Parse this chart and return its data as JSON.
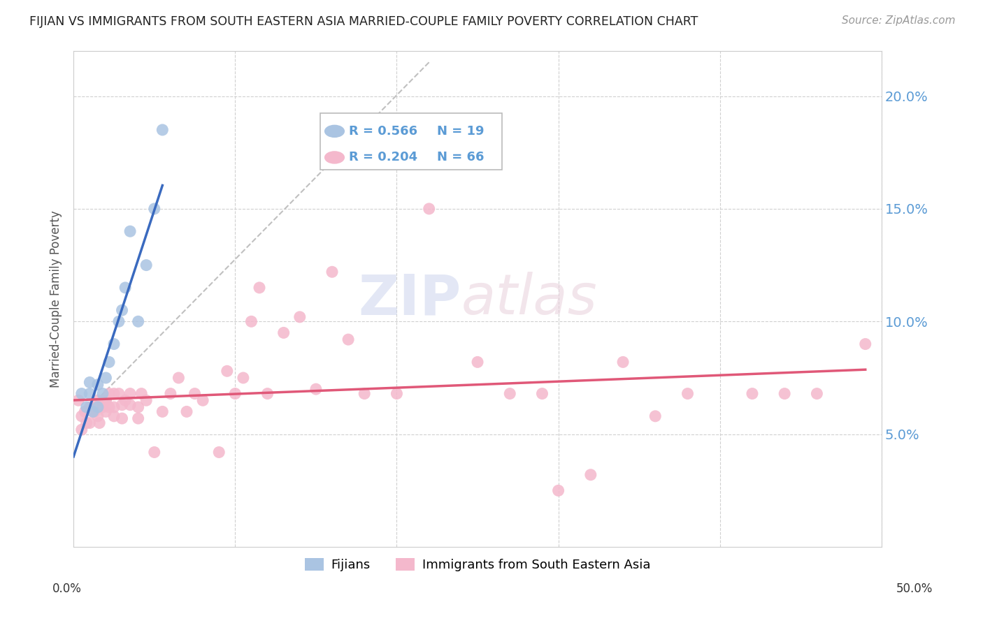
{
  "title": "FIJIAN VS IMMIGRANTS FROM SOUTH EASTERN ASIA MARRIED-COUPLE FAMILY POVERTY CORRELATION CHART",
  "source": "Source: ZipAtlas.com",
  "ylabel": "Married-Couple Family Poverty",
  "yticks": [
    0.0,
    0.05,
    0.1,
    0.15,
    0.2
  ],
  "ytick_labels": [
    "",
    "5.0%",
    "10.0%",
    "15.0%",
    "20.0%"
  ],
  "xlim": [
    0.0,
    0.5
  ],
  "ylim": [
    0.0,
    0.22
  ],
  "fijian_r": 0.566,
  "fijian_n": 19,
  "sea_r": 0.204,
  "sea_n": 66,
  "fijian_color": "#aac4e2",
  "sea_color": "#f4b8cc",
  "fijian_line_color": "#3a6abf",
  "sea_line_color": "#e05878",
  "diagonal_color": "#c0c0c0",
  "legend_label_fijian": "Fijians",
  "legend_label_sea": "Immigrants from South Eastern Asia",
  "legend_r_color": "#5b9bd5",
  "right_axis_color": "#5b9bd5",
  "fijian_points_x": [
    0.005,
    0.008,
    0.01,
    0.01,
    0.012,
    0.015,
    0.015,
    0.018,
    0.02,
    0.022,
    0.025,
    0.028,
    0.03,
    0.032,
    0.035,
    0.04,
    0.045,
    0.05,
    0.055
  ],
  "fijian_points_y": [
    0.068,
    0.062,
    0.068,
    0.073,
    0.06,
    0.062,
    0.072,
    0.068,
    0.075,
    0.082,
    0.09,
    0.1,
    0.105,
    0.115,
    0.14,
    0.1,
    0.125,
    0.15,
    0.185
  ],
  "sea_points_x": [
    0.003,
    0.005,
    0.005,
    0.007,
    0.008,
    0.01,
    0.01,
    0.012,
    0.013,
    0.015,
    0.015,
    0.016,
    0.018,
    0.018,
    0.02,
    0.02,
    0.02,
    0.022,
    0.022,
    0.025,
    0.025,
    0.025,
    0.028,
    0.03,
    0.03,
    0.032,
    0.035,
    0.035,
    0.04,
    0.04,
    0.042,
    0.045,
    0.05,
    0.055,
    0.06,
    0.065,
    0.07,
    0.075,
    0.08,
    0.09,
    0.095,
    0.1,
    0.105,
    0.11,
    0.115,
    0.12,
    0.13,
    0.14,
    0.15,
    0.16,
    0.17,
    0.18,
    0.2,
    0.22,
    0.25,
    0.27,
    0.29,
    0.3,
    0.32,
    0.34,
    0.36,
    0.38,
    0.42,
    0.44,
    0.46,
    0.49
  ],
  "sea_points_y": [
    0.065,
    0.058,
    0.052,
    0.06,
    0.055,
    0.055,
    0.062,
    0.06,
    0.06,
    0.058,
    0.065,
    0.055,
    0.062,
    0.065,
    0.06,
    0.065,
    0.065,
    0.062,
    0.068,
    0.058,
    0.062,
    0.068,
    0.068,
    0.057,
    0.063,
    0.065,
    0.063,
    0.068,
    0.057,
    0.062,
    0.068,
    0.065,
    0.042,
    0.06,
    0.068,
    0.075,
    0.06,
    0.068,
    0.065,
    0.042,
    0.078,
    0.068,
    0.075,
    0.1,
    0.115,
    0.068,
    0.095,
    0.102,
    0.07,
    0.122,
    0.092,
    0.068,
    0.068,
    0.15,
    0.082,
    0.068,
    0.068,
    0.025,
    0.032,
    0.082,
    0.058,
    0.068,
    0.068,
    0.068,
    0.068,
    0.09
  ]
}
